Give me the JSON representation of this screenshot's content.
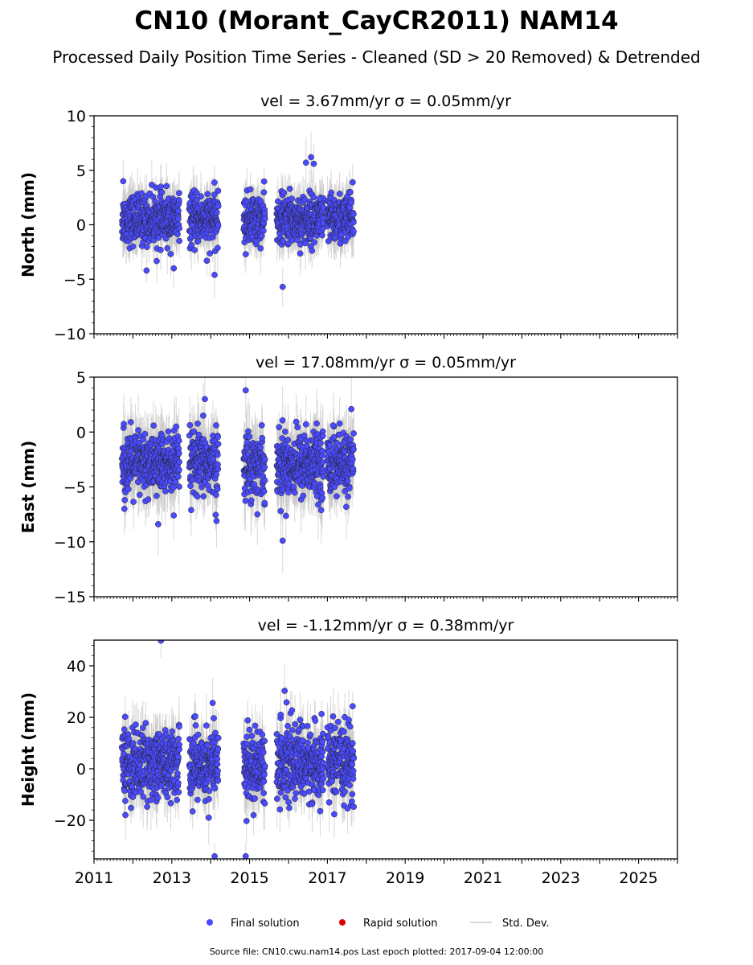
{
  "figure": {
    "title": "CN10 (Morant_CayCR2011) NAM14",
    "subtitle": "Processed Daily Position Time Series - Cleaned (SD > 20 Removed) & Detrended",
    "source": "Source file: CN10.cwu.nam14.pos  Last epoch plotted: 2017-09-04 12:00:00",
    "colors": {
      "final": "#4a4aff",
      "rapid": "#e00000",
      "stddev": "#c8c8c8"
    }
  },
  "legend": {
    "final": "Final solution",
    "rapid": "Rapid solution",
    "stddev": "Std. Dev."
  },
  "chart_data": [
    {
      "type": "scatter",
      "panel": "north",
      "title": "vel = 3.67mm/yr   σ = 0.05mm/yr",
      "ylabel": "North (mm)",
      "xlim": [
        2011,
        2026
      ],
      "ylim": [
        -10,
        10
      ],
      "yticks": [
        -10,
        -5,
        0,
        5,
        10
      ],
      "ytick_labels": [
        "−10",
        "−5",
        "0",
        "5",
        "10"
      ],
      "xticks": [
        2011,
        2013,
        2015,
        2017,
        2019,
        2021,
        2023,
        2025
      ],
      "xtick_labels": [
        "",
        "",
        "",
        "",
        "",
        "",
        "",
        ""
      ],
      "segments": [
        [
          2011.72,
          2013.2
        ],
        [
          2013.45,
          2014.2
        ],
        [
          2014.85,
          2015.4
        ],
        [
          2015.7,
          2016.9
        ],
        [
          2017.0,
          2017.68
        ]
      ],
      "mean": 0.5,
      "spread": 1.1,
      "sd": 1.6,
      "outliers": [
        [
          2011.75,
          4.0
        ],
        [
          2012.35,
          -4.2
        ],
        [
          2013.05,
          -4.0
        ],
        [
          2013.9,
          -3.3
        ],
        [
          2014.1,
          -4.6
        ],
        [
          2014.9,
          -2.7
        ],
        [
          2015.85,
          -5.7
        ],
        [
          2016.45,
          5.7
        ],
        [
          2016.58,
          6.2
        ],
        [
          2016.65,
          5.6
        ],
        [
          2016.8,
          2.4
        ],
        [
          2017.65,
          3.9
        ]
      ],
      "series": [
        {
          "name": "Final solution",
          "color": "#4a4aff"
        }
      ]
    },
    {
      "type": "scatter",
      "panel": "east",
      "title": "vel = 17.08mm/yr   σ = 0.05mm/yr",
      "ylabel": "East (mm)",
      "xlim": [
        2011,
        2026
      ],
      "ylim": [
        -15,
        5
      ],
      "yticks": [
        -15,
        -10,
        -5,
        0,
        5
      ],
      "ytick_labels": [
        "−15",
        "−10",
        "−5",
        "0",
        "5"
      ],
      "xticks": [
        2011,
        2013,
        2015,
        2017,
        2019,
        2021,
        2023,
        2025
      ],
      "xtick_labels": [
        "",
        "",
        "",
        "",
        "",
        "",
        "",
        ""
      ],
      "segments": [
        [
          2011.72,
          2013.2
        ],
        [
          2013.45,
          2014.2
        ],
        [
          2014.85,
          2015.4
        ],
        [
          2015.7,
          2016.9
        ],
        [
          2017.0,
          2017.68
        ]
      ],
      "mean": -2.9,
      "spread": 1.4,
      "sd": 2.2,
      "outliers": [
        [
          2011.78,
          -7.0
        ],
        [
          2012.65,
          -8.4
        ],
        [
          2013.05,
          -7.6
        ],
        [
          2013.85,
          3.0
        ],
        [
          2014.15,
          -8.1
        ],
        [
          2014.9,
          3.8
        ],
        [
          2015.2,
          -7.5
        ],
        [
          2015.85,
          -9.9
        ],
        [
          2015.8,
          -7.2
        ],
        [
          2016.45,
          0.7
        ],
        [
          2017.15,
          0.6
        ]
      ],
      "series": [
        {
          "name": "Final solution",
          "color": "#4a4aff"
        }
      ]
    },
    {
      "type": "scatter",
      "panel": "height",
      "title": "vel = -1.12mm/yr   σ = 0.38mm/yr",
      "ylabel": "Height (mm)",
      "xlim": [
        2011,
        2026
      ],
      "ylim": [
        -35,
        50
      ],
      "yticks": [
        -20,
        0,
        20,
        40
      ],
      "ytick_labels": [
        "−20",
        "0",
        "20",
        "40"
      ],
      "xticks": [
        2011,
        2013,
        2015,
        2017,
        2019,
        2021,
        2023,
        2025
      ],
      "xtick_labels": [
        "2011",
        "2013",
        "2015",
        "2017",
        "2019",
        "2021",
        "2023",
        "2025"
      ],
      "segments": [
        [
          2011.72,
          2013.2
        ],
        [
          2013.45,
          2014.2
        ],
        [
          2014.85,
          2015.4
        ],
        [
          2015.7,
          2016.9
        ],
        [
          2017.0,
          2017.68
        ]
      ],
      "mean": 2.0,
      "spread": 6.5,
      "sd": 8.0,
      "outliers": [
        [
          2011.8,
          20.2
        ],
        [
          2011.95,
          -15.2
        ],
        [
          2012.72,
          49.8
        ],
        [
          2013.6,
          20.4
        ],
        [
          2013.95,
          -19.0
        ],
        [
          2014.05,
          25.6
        ],
        [
          2014.1,
          -34.0
        ],
        [
          2014.9,
          -34.0
        ],
        [
          2014.92,
          -20.3
        ],
        [
          2015.1,
          -18.0
        ],
        [
          2015.8,
          21.0
        ],
        [
          2015.9,
          30.3
        ],
        [
          2015.95,
          25.8
        ],
        [
          2016.3,
          19.0
        ],
        [
          2016.85,
          21.3
        ],
        [
          2017.55,
          19.0
        ],
        [
          2017.65,
          24.3
        ]
      ],
      "series": [
        {
          "name": "Final solution",
          "color": "#4a4aff"
        }
      ]
    }
  ]
}
